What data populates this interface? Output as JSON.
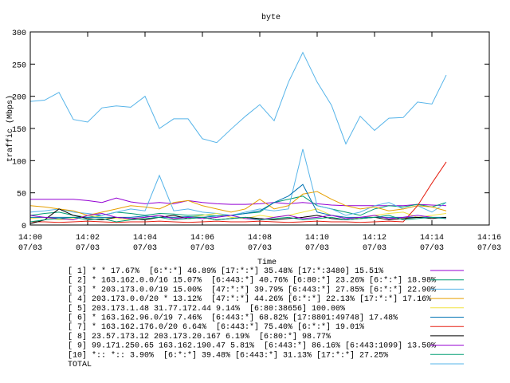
{
  "chart_data": {
    "type": "line",
    "title": "byte",
    "xlabel": "Time",
    "ylabel": "traffic (Mbps)",
    "xlim": [
      0,
      16
    ],
    "ylim": [
      0,
      300
    ],
    "xticks": [
      {
        "value": 0,
        "label": "14:00\n07/03"
      },
      {
        "value": 2,
        "label": "14:02\n07/03"
      },
      {
        "value": 4,
        "label": "14:04\n07/03"
      },
      {
        "value": 6,
        "label": "14:06\n07/03"
      },
      {
        "value": 8,
        "label": "14:08\n07/03"
      },
      {
        "value": 10,
        "label": "14:10\n07/03"
      },
      {
        "value": 12,
        "label": "14:12\n07/03"
      },
      {
        "value": 14,
        "label": "14:14\n07/03"
      },
      {
        "value": 16,
        "label": "14:16\n07/03"
      }
    ],
    "yticks": [
      0,
      50,
      100,
      150,
      200,
      250,
      300
    ],
    "grid": false,
    "x": [
      0,
      0.5,
      1,
      1.5,
      2,
      2.5,
      3,
      3.5,
      4,
      4.5,
      5,
      5.5,
      6,
      6.5,
      7,
      7.5,
      8,
      8.5,
      9,
      9.5,
      10,
      10.5,
      11,
      11.5,
      12,
      12.5,
      13,
      13.5,
      14,
      14.5
    ],
    "series": [
      {
        "name": "[ 1] * * 17.67%  [6:*:*] 46.89% [17:*:*] 35.48% [17:*:3480] 15.51%",
        "color": "#9400d3",
        "values": [
          40,
          40,
          40,
          40,
          38,
          35,
          42,
          36,
          33,
          35,
          33,
          38,
          35,
          33,
          32,
          32,
          33,
          35,
          33,
          35,
          33,
          31,
          30,
          30,
          30,
          30,
          30,
          32,
          31,
          30
        ]
      },
      {
        "name": "[ 2] * 163.162.0.0/16 15.07%  [6:443:*] 40.76% [6:80:*] 23.26% [6:*:*] 18.98%",
        "color": "#009e73",
        "values": [
          15,
          18,
          20,
          15,
          12,
          15,
          20,
          18,
          15,
          18,
          17,
          15,
          16,
          14,
          15,
          18,
          20,
          35,
          40,
          45,
          30,
          25,
          20,
          15,
          25,
          30,
          28,
          32,
          28,
          35
        ]
      },
      {
        "name": "[ 3] * 203.173.0.0/19 15.00%  [47:*:*] 39.79% [6:443:*] 27.85% [6:*:*] 22.90%",
        "color": "#56b4e9",
        "values": [
          20,
          22,
          25,
          20,
          18,
          15,
          20,
          25,
          22,
          77,
          22,
          25,
          20,
          18,
          15,
          20,
          25,
          22,
          25,
          118,
          30,
          25,
          15,
          20,
          30,
          35,
          25,
          30,
          20,
          35
        ]
      },
      {
        "name": "[ 4] 203.173.0.0/20 * 13.12%  [47:*:*] 44.26% [6:*:*] 22.13% [17:*:*] 17.16%",
        "color": "#e69f00",
        "values": [
          30,
          28,
          25,
          22,
          15,
          20,
          25,
          30,
          28,
          25,
          35,
          38,
          30,
          25,
          20,
          25,
          40,
          25,
          30,
          48,
          52,
          40,
          30,
          25,
          28,
          22,
          25,
          30,
          28,
          22
        ]
      },
      {
        "name": "[ 5] 203.173.1.48 31.77.172.44 9.14%  [6:80:38656] 100.00%",
        "color": "#f0e442",
        "values": [
          10,
          12,
          8,
          10,
          15,
          12,
          10,
          8,
          12,
          15,
          10,
          12,
          15,
          18,
          12,
          10,
          15,
          12,
          15,
          20,
          25,
          15,
          12,
          10,
          15,
          18,
          20,
          12,
          15,
          18
        ]
      },
      {
        "name": "[ 6] * 163.162.96.0/19 7.46%  [6:443:*] 68.82% [17:8801:49748] 17.48%",
        "color": "#0072b2",
        "values": [
          12,
          12,
          12,
          12,
          12,
          12,
          12,
          12,
          14,
          12,
          12,
          13,
          12,
          14,
          15,
          18,
          22,
          35,
          45,
          63,
          20,
          15,
          12,
          12,
          12,
          12,
          12,
          12,
          12,
          12
        ]
      },
      {
        "name": "[ 7] * 163.162.176.0/20 6.64%  [6:443:*] 75.40% [6:*:*] 19.01%",
        "color": "#e51e10",
        "values": [
          5,
          5,
          4,
          5,
          6,
          5,
          4,
          5,
          5,
          6,
          5,
          4,
          5,
          6,
          5,
          5,
          6,
          5,
          4,
          5,
          6,
          5,
          5,
          4,
          5,
          6,
          5,
          30,
          65,
          98
        ]
      },
      {
        "name": "[ 8] 23.57.173.12 203.173.20.167 6.19%  [6:80:*] 98.77%",
        "color": "#000000",
        "values": [
          2,
          8,
          25,
          15,
          10,
          8,
          12,
          10,
          8,
          12,
          15,
          10,
          12,
          8,
          10,
          12,
          10,
          8,
          10,
          12,
          15,
          10,
          8,
          10,
          12,
          8,
          10,
          12,
          10,
          12
        ]
      },
      {
        "name": "[ 9] 99.171.250.65 163.162.190.47 5.81%  [6:443:*] 86.16% [6:443:1099] 13.50%",
        "color": "#9400d3",
        "values": [
          15,
          12,
          10,
          8,
          15,
          18,
          12,
          10,
          12,
          15,
          10,
          12,
          10,
          12,
          15,
          10,
          8,
          12,
          15,
          10,
          12,
          15,
          10,
          12,
          15,
          10,
          12,
          15,
          12,
          10
        ]
      },
      {
        "name": "[10] *:: *:: 3.90%  [6:*:*] 39.48% [6:443:*] 31.13% [17:*:*] 27.25%",
        "color": "#009e73",
        "values": [
          5,
          8,
          10,
          12,
          8,
          10,
          5,
          8,
          10,
          12,
          8,
          10,
          12,
          8,
          10,
          12,
          8,
          10,
          12,
          8,
          10,
          12,
          8,
          10,
          12,
          15,
          8,
          10,
          12,
          10
        ]
      },
      {
        "name": "TOTAL",
        "color": "#56b4e9",
        "values": [
          192,
          194,
          206,
          164,
          160,
          182,
          185,
          183,
          200,
          150,
          165,
          165,
          134,
          128,
          149,
          169,
          187,
          162,
          222,
          268,
          222,
          186,
          126,
          169,
          147,
          166,
          167,
          191,
          188,
          233
        ]
      }
    ]
  }
}
